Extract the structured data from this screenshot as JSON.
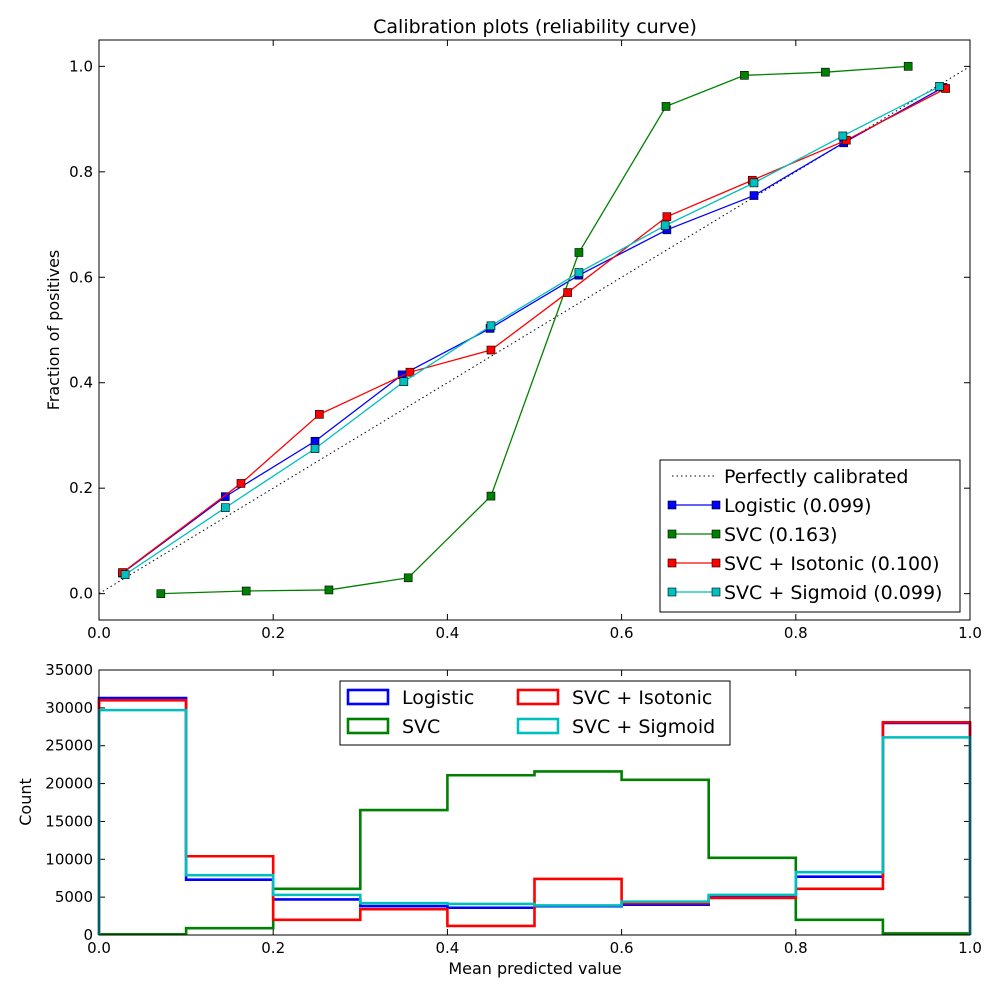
{
  "chart_data": [
    {
      "type": "line",
      "title": "Calibration plots  (reliability curve)",
      "xlabel": "",
      "ylabel": "Fraction of positives",
      "xlim": [
        0.0,
        1.0
      ],
      "ylim": [
        -0.05,
        1.05
      ],
      "x_ticks": [
        "0.0",
        "0.2",
        "0.4",
        "0.6",
        "0.8",
        "1.0"
      ],
      "y_ticks": [
        "0.0",
        "0.2",
        "0.4",
        "0.6",
        "0.8",
        "1.0"
      ],
      "grid": false,
      "legend_position": "lower-right",
      "reference_line": {
        "name": "Perfectly calibrated",
        "color": "#000000",
        "style": "dotted",
        "x": [
          0,
          1
        ],
        "y": [
          0,
          1
        ]
      },
      "series": [
        {
          "name": "Logistic (0.099)",
          "color": "#0000ff",
          "x": [
            0.027,
            0.145,
            0.248,
            0.348,
            0.449,
            0.551,
            0.652,
            0.752,
            0.855,
            0.969
          ],
          "y": [
            0.039,
            0.184,
            0.289,
            0.415,
            0.503,
            0.604,
            0.69,
            0.755,
            0.855,
            0.96
          ]
        },
        {
          "name": "SVC (0.163)",
          "color": "#008000",
          "x": [
            0.071,
            0.169,
            0.264,
            0.355,
            0.45,
            0.551,
            0.651,
            0.741,
            0.834,
            0.929
          ],
          "y": [
            0.0,
            0.005,
            0.007,
            0.03,
            0.185,
            0.647,
            0.924,
            0.983,
            0.989,
            1.0
          ]
        },
        {
          "name": "SVC + Isotonic (0.100)",
          "color": "#ff0000",
          "x": [
            0.027,
            0.163,
            0.253,
            0.357,
            0.45,
            0.538,
            0.652,
            0.75,
            0.858,
            0.972
          ],
          "y": [
            0.04,
            0.209,
            0.34,
            0.42,
            0.462,
            0.571,
            0.715,
            0.784,
            0.86,
            0.958
          ]
        },
        {
          "name": "SVC + Sigmoid (0.099)",
          "color": "#00bfbf",
          "x": [
            0.03,
            0.145,
            0.248,
            0.35,
            0.45,
            0.551,
            0.65,
            0.752,
            0.854,
            0.965
          ],
          "y": [
            0.036,
            0.163,
            0.275,
            0.402,
            0.508,
            0.609,
            0.698,
            0.779,
            0.868,
            0.962
          ]
        }
      ]
    },
    {
      "type": "histogram",
      "title": "",
      "xlabel": "Mean predicted value",
      "ylabel": "Count",
      "xlim": [
        0.0,
        1.0
      ],
      "ylim": [
        0,
        35000
      ],
      "x_ticks": [
        "0.0",
        "0.2",
        "0.4",
        "0.6",
        "0.8",
        "1.0"
      ],
      "y_ticks": [
        "0",
        "5000",
        "10000",
        "15000",
        "20000",
        "25000",
        "30000",
        "35000"
      ],
      "bin_edges": [
        0.0,
        0.1,
        0.2,
        0.3,
        0.4,
        0.5,
        0.6,
        0.7,
        0.8,
        0.9,
        1.0
      ],
      "grid": false,
      "legend_position": "upper-center",
      "series": [
        {
          "name": "Logistic",
          "color": "#0000ff",
          "values": [
            31300,
            7300,
            4700,
            3800,
            3600,
            3800,
            4000,
            5000,
            7700,
            28000
          ]
        },
        {
          "name": "SVC",
          "color": "#008000",
          "values": [
            100,
            900,
            6100,
            16500,
            21100,
            21600,
            20500,
            10200,
            2000,
            200
          ]
        },
        {
          "name": "SVC + Isotonic",
          "color": "#ff0000",
          "values": [
            31000,
            10400,
            2000,
            3400,
            1200,
            7400,
            4200,
            4900,
            6100,
            28100
          ]
        },
        {
          "name": "SVC + Sigmoid",
          "color": "#00bfbf",
          "values": [
            29700,
            7900,
            5300,
            4200,
            4100,
            3900,
            4400,
            5300,
            8300,
            26100
          ]
        }
      ]
    }
  ]
}
